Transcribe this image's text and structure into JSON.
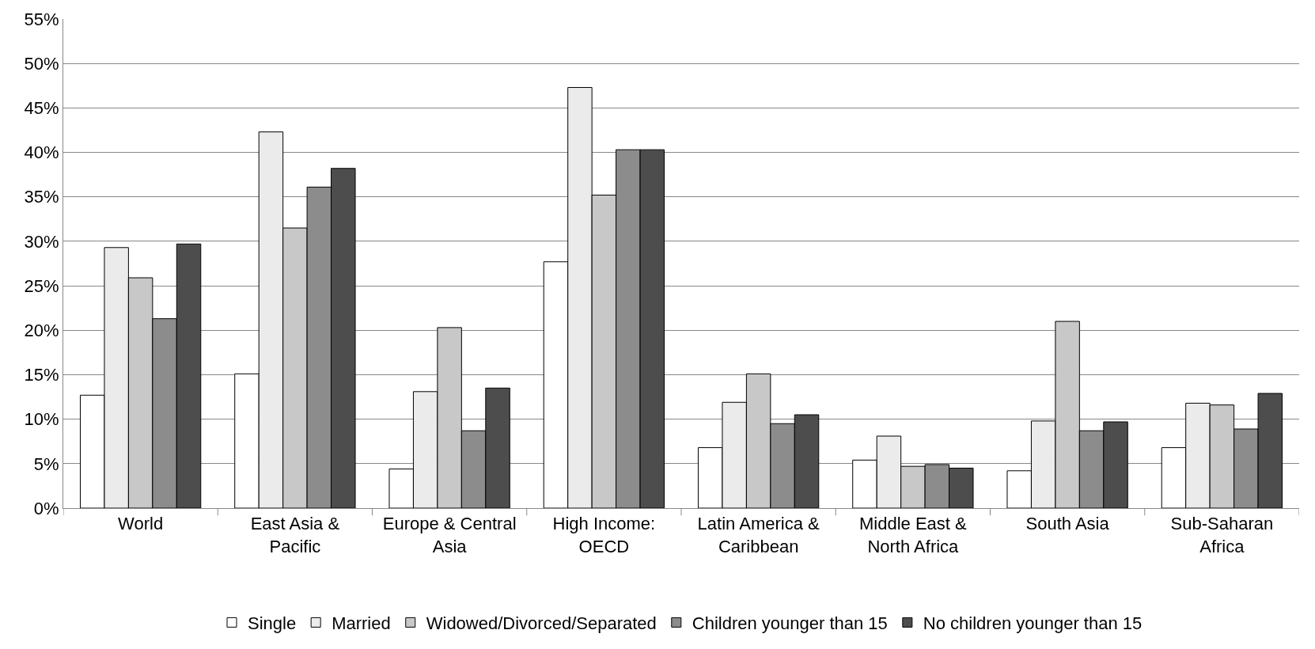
{
  "chart_data": {
    "type": "bar",
    "categories": [
      "World",
      "East Asia & Pacific",
      "Europe & Central Asia",
      "High Income: OECD",
      "Latin America & Caribbean",
      "Middle East & North Africa",
      "South Asia",
      "Sub-Saharan Africa"
    ],
    "series": [
      {
        "name": "Single",
        "color": "#ffffff",
        "values": [
          12.7,
          15.1,
          4.4,
          27.7,
          6.8,
          5.4,
          4.2,
          6.8
        ]
      },
      {
        "name": "Married",
        "color": "#ebebeb",
        "values": [
          29.3,
          42.3,
          13.1,
          47.3,
          11.9,
          8.1,
          9.8,
          11.8
        ]
      },
      {
        "name": "Widowed/Divorced/Separated",
        "color": "#c8c8c8",
        "values": [
          25.9,
          31.5,
          20.3,
          35.2,
          15.1,
          4.7,
          21.0,
          11.6
        ]
      },
      {
        "name": "Children younger than 15",
        "color": "#8c8c8c",
        "values": [
          21.3,
          36.1,
          8.7,
          40.3,
          9.5,
          4.9,
          8.7,
          8.9
        ]
      },
      {
        "name": "No children younger than 15",
        "color": "#4d4d4d",
        "values": [
          29.7,
          38.2,
          13.5,
          40.3,
          10.5,
          4.5,
          9.7,
          12.9
        ]
      }
    ],
    "ylim": [
      0,
      55
    ],
    "yticks": [
      {
        "value": 0,
        "label": "0%"
      },
      {
        "value": 5,
        "label": "5%"
      },
      {
        "value": 10,
        "label": "10%"
      },
      {
        "value": 15,
        "label": "15%"
      },
      {
        "value": 20,
        "label": "20%"
      },
      {
        "value": 25,
        "label": "25%"
      },
      {
        "value": 30,
        "label": "30%"
      },
      {
        "value": 35,
        "label": "35%"
      },
      {
        "value": 40,
        "label": "40%"
      },
      {
        "value": 45,
        "label": "45%"
      },
      {
        "value": 50,
        "label": "50%"
      },
      {
        "value": 55,
        "label": "55%"
      }
    ],
    "grid": "y",
    "legend": "bottom"
  }
}
